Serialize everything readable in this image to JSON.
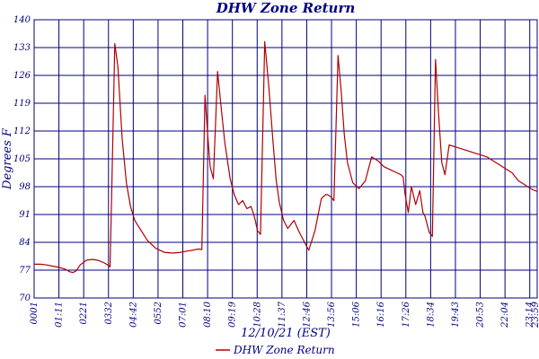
{
  "chart_data": {
    "type": "line",
    "title": "DHW Zone Return",
    "xlabel": "12/10/21 (EST)",
    "ylabel": "Degrees F",
    "ylim": [
      70,
      140
    ],
    "yticks": [
      "70",
      "77",
      "84",
      "91",
      "98",
      "105",
      "112",
      "119",
      "126",
      "133",
      "140"
    ],
    "xticks": [
      "0001",
      "01:11",
      "0221",
      "0332",
      "04:42",
      "0552",
      "07:01",
      "08:10",
      "09:19",
      "10:28",
      "11:37",
      "12:46",
      "13:56",
      "15:06",
      "16:16",
      "17:26",
      "18:34",
      "19:43",
      "20:53",
      "22:04",
      "23:14",
      "23:59"
    ],
    "grid": true,
    "legend_position": "bottom",
    "series": [
      {
        "name": "DHW Zone Return",
        "color": "#b00000",
        "x": [
          0,
          0.3,
          0.6,
          0.9,
          1.2,
          1.5,
          1.7,
          1.85,
          2.0,
          2.2,
          2.5,
          2.8,
          3.1,
          3.35,
          3.55,
          3.62,
          3.7,
          3.85,
          4.0,
          4.2,
          4.4,
          4.6,
          4.8,
          5.1,
          5.4,
          5.8,
          6.2,
          6.6,
          7.0,
          7.3,
          7.55,
          7.7,
          7.85,
          8.0,
          8.15,
          8.28,
          8.4,
          8.55,
          8.65,
          8.75,
          8.9,
          9.1,
          9.35,
          9.55,
          9.75,
          9.95,
          10.15,
          10.35,
          10.45,
          10.55,
          10.65,
          10.8,
          11.0,
          11.2,
          11.4,
          11.55,
          11.7,
          11.9,
          12.1,
          12.4,
          12.65,
          12.9,
          13.1,
          13.4,
          13.7,
          13.9,
          14.0,
          14.15,
          14.3,
          14.5,
          14.65,
          14.8,
          14.95,
          15.2,
          15.5,
          15.8,
          16.1,
          16.4,
          16.7,
          16.9,
          17.1,
          17.3,
          17.5,
          17.6,
          17.7,
          17.85,
          18.0,
          18.2,
          18.4,
          18.55,
          18.65,
          18.75,
          18.85,
          19.0,
          19.15,
          19.3,
          19.45,
          19.6,
          19.8,
          20.1,
          20.4,
          20.7,
          21.0,
          21.3,
          21.6,
          21.9,
          22.2,
          22.5,
          22.8,
          23.1,
          23.4,
          23.6,
          23.8,
          24.0
        ],
        "values": [
          78.5,
          78.5,
          78.3,
          78.0,
          77.7,
          77.2,
          76.6,
          76.4,
          76.8,
          78.3,
          79.5,
          79.7,
          79.4,
          78.8,
          78.2,
          77.8,
          96,
          134,
          128,
          110,
          99,
          93,
          89.5,
          87,
          84.5,
          82.5,
          81.5,
          81.3,
          81.5,
          81.8,
          82.0,
          82.2,
          82.3,
          82.2,
          121,
          111,
          103,
          100,
          113,
          127,
          119,
          109,
          100,
          96,
          93.5,
          94.5,
          92.5,
          93,
          91.5,
          89.5,
          87,
          86,
          134.5,
          123,
          109,
          99.5,
          94,
          89.5,
          87.5,
          89.5,
          86.5,
          84,
          82,
          87,
          95,
          96,
          96,
          95.5,
          94.5,
          131,
          122,
          111,
          104,
          99,
          97.5,
          99.5,
          105.5,
          104.5,
          103,
          102.5,
          102,
          101.5,
          101,
          100.5,
          96,
          91.5,
          98,
          93.5,
          97,
          91.5,
          90.5,
          88.5,
          86.5,
          85.5,
          130,
          116,
          104,
          101,
          108.5,
          108,
          107.5,
          107,
          106.5,
          106,
          105.5,
          104.5,
          103.5,
          102.5,
          101.5,
          99.5,
          98.5,
          97.8,
          97.2,
          96.8
        ]
      }
    ]
  }
}
